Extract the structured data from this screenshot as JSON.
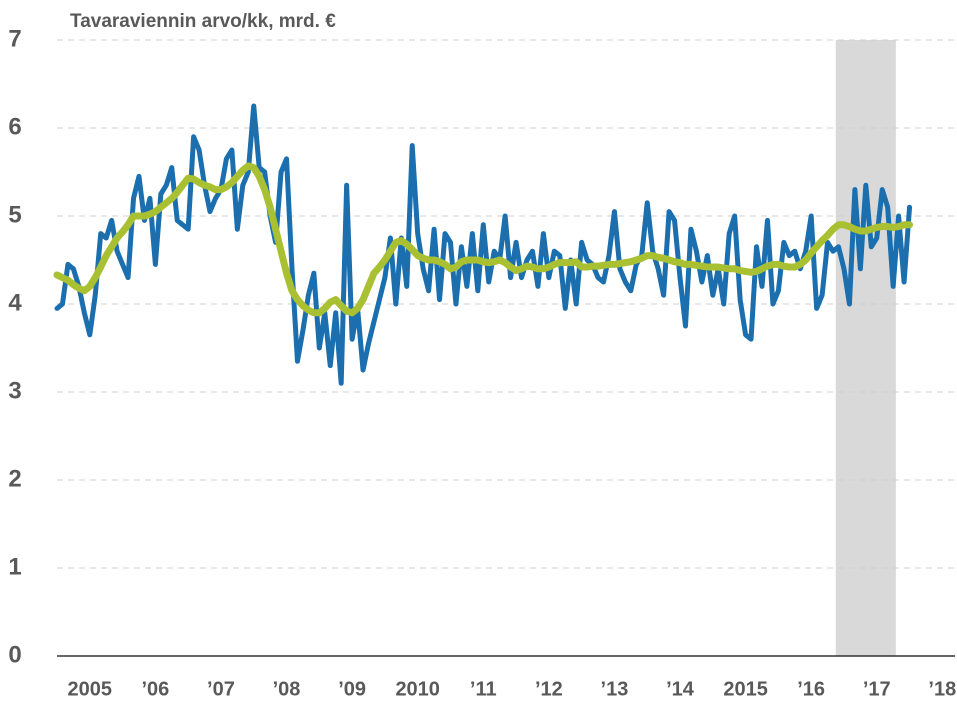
{
  "chart_data": {
    "type": "line",
    "title": "Tavaraviennin arvo/kk, mrd. €",
    "categories": [
      null,
      null,
      null,
      null,
      null,
      null,
      "2005",
      null,
      null,
      null,
      null,
      null,
      null,
      null,
      null,
      null,
      null,
      null,
      "’06",
      null,
      null,
      null,
      null,
      null,
      null,
      null,
      null,
      null,
      null,
      null,
      "’07",
      null,
      null,
      null,
      null,
      null,
      null,
      null,
      null,
      null,
      null,
      null,
      "’08",
      null,
      null,
      null,
      null,
      null,
      null,
      null,
      null,
      null,
      null,
      null,
      "’09",
      null,
      null,
      null,
      null,
      null,
      null,
      null,
      null,
      null,
      null,
      null,
      "2010",
      null,
      null,
      null,
      null,
      null,
      null,
      null,
      null,
      null,
      null,
      null,
      "’11",
      null,
      null,
      null,
      null,
      null,
      null,
      null,
      null,
      null,
      null,
      null,
      "’12",
      null,
      null,
      null,
      null,
      null,
      null,
      null,
      null,
      null,
      null,
      null,
      "’13",
      null,
      null,
      null,
      null,
      null,
      null,
      null,
      null,
      null,
      null,
      null,
      "’14",
      null,
      null,
      null,
      null,
      null,
      null,
      null,
      null,
      null,
      null,
      null,
      "2015",
      null,
      null,
      null,
      null,
      null,
      null,
      null,
      null,
      null,
      null,
      null,
      "’16",
      null,
      null,
      null,
      null,
      null,
      null,
      null,
      null,
      null,
      null,
      null,
      "’17",
      null,
      null,
      null,
      null,
      null,
      null,
      null,
      null,
      null,
      null,
      null,
      "’18",
      null,
      null,
      null,
      null,
      null
    ],
    "series": [
      {
        "color": "#1b6fae",
        "values": [
          3.95,
          4.0,
          4.45,
          4.4,
          4.2,
          3.9,
          3.65,
          4.1,
          4.8,
          4.75,
          4.95,
          4.6,
          4.45,
          4.3,
          5.2,
          5.45,
          4.95,
          5.2,
          4.45,
          5.25,
          5.35,
          5.55,
          4.95,
          4.9,
          4.85,
          5.9,
          5.75,
          5.35,
          5.05,
          5.2,
          5.3,
          5.65,
          5.75,
          4.85,
          5.35,
          5.5,
          6.25,
          5.55,
          5.5,
          5.0,
          4.7,
          5.5,
          5.65,
          4.4,
          3.35,
          3.7,
          4.1,
          4.35,
          3.5,
          3.9,
          3.3,
          3.9,
          3.1,
          5.35,
          3.6,
          3.95,
          3.25,
          3.55,
          3.8,
          4.05,
          4.3,
          4.75,
          4.0,
          4.75,
          4.2,
          5.8,
          4.8,
          4.4,
          4.15,
          4.85,
          4.05,
          4.8,
          4.7,
          4.0,
          4.65,
          4.2,
          4.8,
          4.15,
          4.9,
          4.25,
          4.6,
          4.5,
          5.0,
          4.3,
          4.7,
          4.3,
          4.5,
          4.6,
          4.2,
          4.8,
          4.3,
          4.6,
          4.55,
          3.95,
          4.5,
          4.0,
          4.7,
          4.5,
          4.45,
          4.3,
          4.25,
          4.55,
          5.05,
          4.4,
          4.25,
          4.15,
          4.45,
          4.55,
          5.15,
          4.6,
          4.4,
          4.1,
          5.05,
          4.95,
          4.3,
          3.75,
          4.85,
          4.6,
          4.25,
          4.55,
          4.1,
          4.4,
          4.0,
          4.8,
          5.0,
          4.05,
          3.65,
          3.6,
          4.65,
          4.2,
          4.95,
          4.0,
          4.15,
          4.7,
          4.55,
          4.6,
          4.4,
          4.6,
          5.0,
          3.95,
          4.1,
          4.7,
          4.6,
          4.65,
          4.4,
          4.0,
          5.3,
          4.4,
          5.35,
          4.65,
          4.75,
          5.3,
          5.1,
          4.2,
          5.0,
          4.25,
          5.1,
          null,
          null,
          null,
          null,
          null,
          null,
          null,
          null,
          null,
          null,
          null
        ]
      },
      {
        "color": "#a9c032",
        "values": [
          4.33,
          4.3,
          4.27,
          4.22,
          4.18,
          4.15,
          4.2,
          4.3,
          4.42,
          4.55,
          4.65,
          4.75,
          4.82,
          4.9,
          5.0,
          5.0,
          5.0,
          5.02,
          5.05,
          5.1,
          5.15,
          5.2,
          5.27,
          5.35,
          5.43,
          5.42,
          5.38,
          5.35,
          5.33,
          5.3,
          5.3,
          5.33,
          5.38,
          5.45,
          5.52,
          5.57,
          5.55,
          5.45,
          5.3,
          5.1,
          4.85,
          4.6,
          4.35,
          4.15,
          4.05,
          3.98,
          3.93,
          3.9,
          3.9,
          3.95,
          4.02,
          4.05,
          3.98,
          3.92,
          3.9,
          3.95,
          4.05,
          4.2,
          4.35,
          4.42,
          4.5,
          4.6,
          4.7,
          4.72,
          4.68,
          4.62,
          4.55,
          4.52,
          4.5,
          4.5,
          4.48,
          4.45,
          4.4,
          4.42,
          4.48,
          4.5,
          4.5,
          4.5,
          4.48,
          4.47,
          4.48,
          4.5,
          4.47,
          4.42,
          4.38,
          4.4,
          4.43,
          4.42,
          4.4,
          4.4,
          4.42,
          4.45,
          4.47,
          4.47,
          4.47,
          4.48,
          4.42,
          4.42,
          4.43,
          4.43,
          4.44,
          4.45,
          4.45,
          4.46,
          4.47,
          4.48,
          4.5,
          4.52,
          4.55,
          4.55,
          4.53,
          4.52,
          4.5,
          4.48,
          4.47,
          4.45,
          4.45,
          4.44,
          4.43,
          4.42,
          4.42,
          4.42,
          4.41,
          4.4,
          4.4,
          4.38,
          4.37,
          4.36,
          4.37,
          4.4,
          4.43,
          4.45,
          4.45,
          4.43,
          4.42,
          4.42,
          4.45,
          4.5,
          4.58,
          4.65,
          4.72,
          4.78,
          4.85,
          4.9,
          4.9,
          4.88,
          4.85,
          4.83,
          4.83,
          4.85,
          4.87,
          4.88,
          4.88,
          4.87,
          4.88,
          4.9,
          4.9,
          null,
          null,
          null,
          null,
          null,
          null,
          null,
          null,
          null,
          null,
          null
        ]
      }
    ],
    "shaded": [
      142.5,
      153.5
    ],
    "shade_color": "#d9d9d9",
    "ylim": [
      0,
      7
    ],
    "yticks": [
      0,
      1,
      2,
      3,
      4,
      5,
      6,
      7
    ],
    "grid": true
  }
}
